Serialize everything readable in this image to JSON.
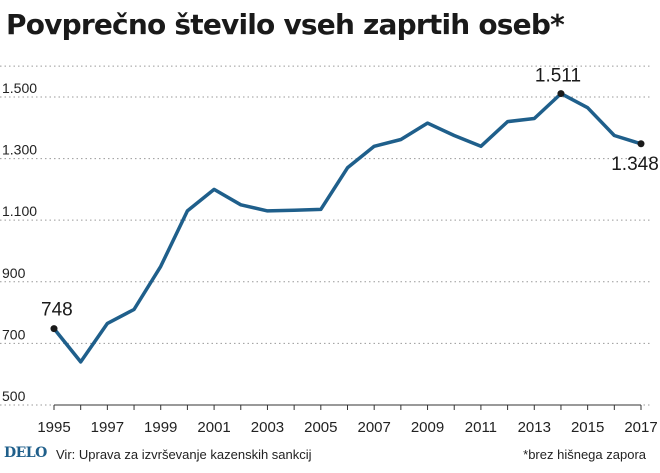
{
  "header": {
    "title": "Povprečno število vseh zaprtih oseb*"
  },
  "chart_data": {
    "type": "line",
    "title": "Povprečno število vseh zaprtih oseb*",
    "xlabel": "",
    "ylabel": "",
    "x": [
      1995,
      1996,
      1997,
      1998,
      1999,
      2000,
      2001,
      2002,
      2003,
      2004,
      2005,
      2006,
      2007,
      2008,
      2009,
      2010,
      2011,
      2012,
      2013,
      2014,
      2015,
      2016,
      2017
    ],
    "values": [
      748,
      640,
      765,
      810,
      950,
      1130,
      1200,
      1150,
      1130,
      1132,
      1135,
      1270,
      1340,
      1362,
      1415,
      1375,
      1340,
      1420,
      1430,
      1511,
      1465,
      1375,
      1348
    ],
    "x_tick_labels": [
      "1995",
      "1997",
      "1999",
      "2001",
      "2003",
      "2005",
      "2007",
      "2009",
      "2011",
      "2013",
      "2015",
      "2017"
    ],
    "y_ticks": [
      500,
      700,
      900,
      1100,
      1300,
      1500
    ],
    "y_tick_labels": [
      "500",
      "700",
      "900",
      "1.100",
      "1.300",
      "1.500"
    ],
    "ylim": [
      500,
      1620
    ],
    "grid": true,
    "line_color": "#1f5f8b",
    "annotations": [
      {
        "x": 1995,
        "value": 748,
        "label": "748"
      },
      {
        "x": 2014,
        "value": 1511,
        "label": "1.511"
      },
      {
        "x": 2017,
        "value": 1348,
        "label": "1.348"
      }
    ]
  },
  "footer": {
    "logo": "DELO",
    "source": "Vir: Uprava za izvrševanje kazenskih sankcij",
    "note": "*brez hišnega zapora"
  }
}
